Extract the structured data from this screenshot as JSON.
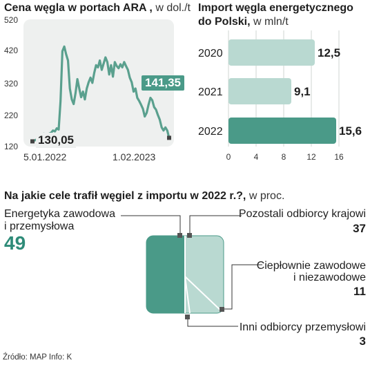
{
  "colors": {
    "accent": "#4a9a88",
    "accent_light": "#b9d9d1",
    "panel": "#eef0ef",
    "line": "#5aa08e"
  },
  "price_chart": {
    "title": "Cena węgla w portach ARA ,",
    "unit": "w dol./t",
    "y_ticks": [
      "520",
      "420",
      "320",
      "220",
      "120"
    ],
    "x_labels": [
      "5.01.2022",
      "1.02.2023"
    ],
    "start_label": "130,05",
    "end_label": "141,35"
  },
  "import_chart": {
    "title_bold_1": "Import węgla energetycznego",
    "title_bold_2": "do Polski,",
    "unit": "w mln/t",
    "x_ticks": [
      "0",
      "4",
      "8",
      "12",
      "16"
    ]
  },
  "usage_chart": {
    "title": "Na jakie cele trafił węgiel z importu w 2022 r.?,",
    "unit": "w proc.",
    "left_label_1": "Energetyka zawodowa",
    "left_label_2": "i przemysłowa",
    "left_value": "49",
    "r1_label": "Pozostali odbiorcy krajowi",
    "r1_value": "37",
    "r2_label_1": "Ciepłownie zawodowe",
    "r2_label_2": "i niezawodowe",
    "r2_value": "11",
    "r3_label": "Inni odbiorcy przemysłowi",
    "r3_value": "3"
  },
  "source": "Źródło: MAP Info: K",
  "chart_data": [
    {
      "type": "line",
      "title": "Cena węgla w portach ARA , w dol./t",
      "x_range": [
        "2022-01-05",
        "2023-02-01"
      ],
      "ylim": [
        120,
        520
      ],
      "y_ticks": [
        520,
        420,
        320,
        220,
        120
      ],
      "series": [
        {
          "values": [
            [
              0,
              130.05
            ],
            [
              3,
              138
            ],
            [
              5,
              148
            ],
            [
              6,
              155
            ],
            [
              8,
              152
            ],
            [
              10,
              158
            ],
            [
              11,
              165
            ],
            [
              12,
              162
            ],
            [
              13,
              172
            ],
            [
              14,
              168
            ],
            [
              15,
              260
            ],
            [
              16,
              420
            ],
            [
              17,
              435
            ],
            [
              18,
              410
            ],
            [
              19,
              390
            ],
            [
              20,
              300
            ],
            [
              21,
              265
            ],
            [
              22,
              250
            ],
            [
              23,
              285
            ],
            [
              24,
              330
            ],
            [
              25,
              300
            ],
            [
              26,
              272
            ],
            [
              27,
              290
            ],
            [
              28,
              265
            ],
            [
              29,
              300
            ],
            [
              30,
              320
            ],
            [
              31,
              335
            ],
            [
              32,
              318
            ],
            [
              33,
              350
            ],
            [
              34,
              375
            ],
            [
              35,
              368
            ],
            [
              36,
              390
            ],
            [
              37,
              360
            ],
            [
              38,
              380
            ],
            [
              39,
              400
            ],
            [
              40,
              385
            ],
            [
              41,
              345
            ],
            [
              42,
              375
            ],
            [
              43,
              338
            ],
            [
              44,
              385
            ],
            [
              45,
              372
            ],
            [
              46,
              365
            ],
            [
              47,
              378
            ],
            [
              48,
              368
            ],
            [
              49,
              385
            ],
            [
              50,
              372
            ],
            [
              51,
              360
            ],
            [
              52,
              335
            ],
            [
              53,
              320
            ],
            [
              54,
              290
            ],
            [
              55,
              300
            ],
            [
              56,
              270
            ],
            [
              57,
              260
            ],
            [
              58,
              248
            ],
            [
              59,
              235
            ],
            [
              60,
              210
            ],
            [
              61,
              222
            ],
            [
              62,
              248
            ],
            [
              63,
              270
            ],
            [
              64,
              262
            ],
            [
              65,
              240
            ],
            [
              66,
              232
            ],
            [
              67,
              215
            ],
            [
              68,
              200
            ],
            [
              69,
              175
            ],
            [
              70,
              165
            ],
            [
              71,
              175
            ],
            [
              72,
              165
            ],
            [
              73,
              141.35
            ]
          ]
        }
      ],
      "annotations": [
        "130,05",
        "141,35"
      ]
    },
    {
      "type": "bar",
      "title": "Import węgla energetycznego do Polski, w mln/t",
      "categories": [
        "2020",
        "2021",
        "2022"
      ],
      "values": [
        12.5,
        9.1,
        15.6
      ],
      "labels": [
        "12,5",
        "9,1",
        "15,6"
      ],
      "xlim": [
        0,
        16
      ],
      "x_ticks": [
        0,
        4,
        8,
        12,
        16
      ]
    },
    {
      "type": "bar",
      "title": "Na jakie cele trafił węgiel z importu w 2022 r.?, w proc.",
      "categories": [
        "Energetyka zawodowa i przemysłowa",
        "Pozostali odbiorcy krajowi",
        "Ciepłownie zawodowe i niezawodowe",
        "Inni odbiorcy przemysłowi"
      ],
      "values": [
        49,
        37,
        11,
        3
      ]
    }
  ]
}
